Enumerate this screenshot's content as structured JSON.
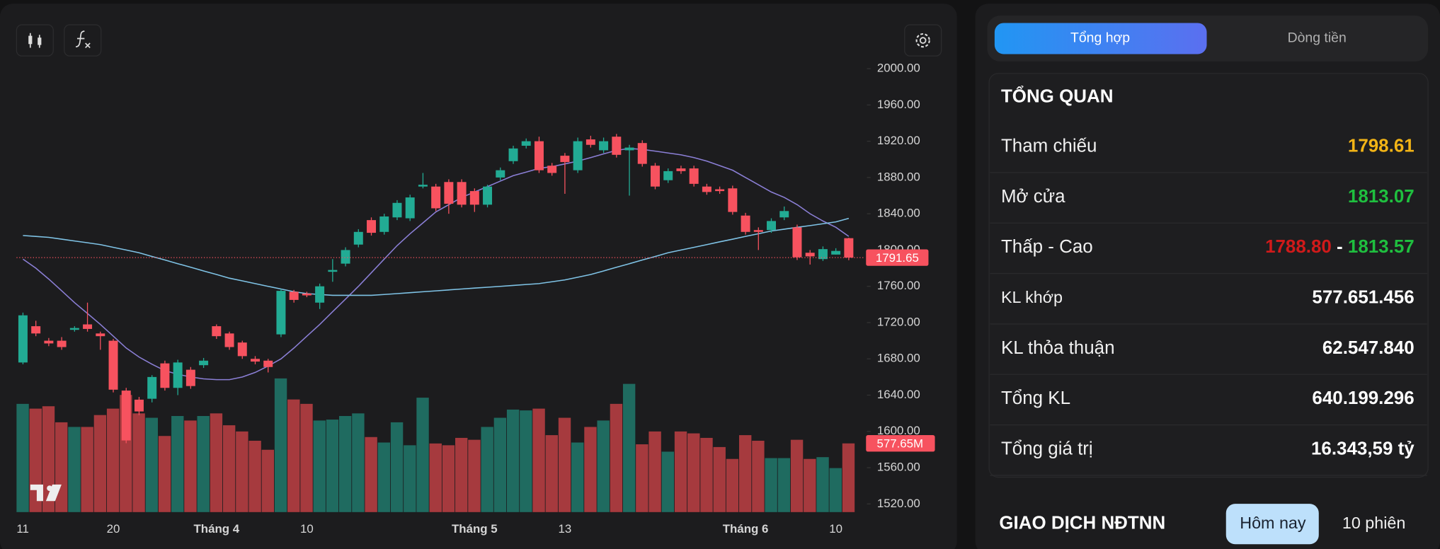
{
  "chart_data": {
    "type": "candlestick",
    "categories": [
      "11",
      null,
      null,
      null,
      null,
      null,
      null,
      "20",
      null,
      null,
      null,
      null,
      null,
      null,
      null,
      "Tháng 4",
      null,
      null,
      null,
      null,
      null,
      null,
      "10",
      null,
      null,
      null,
      null,
      null,
      null,
      null,
      null,
      null,
      null,
      null,
      null,
      "Tháng 5",
      null,
      null,
      null,
      null,
      null,
      null,
      "13",
      null,
      null,
      null,
      null,
      null,
      null,
      null,
      null,
      null,
      null,
      null,
      null,
      null,
      "Tháng 6",
      null,
      null,
      null,
      null,
      null,
      null,
      "10",
      null
    ],
    "open": [
      1676,
      1716,
      1700,
      1700,
      1712,
      1718,
      1708,
      1700,
      1645,
      1635,
      1636,
      1675,
      1648,
      1668,
      1673,
      1716,
      1708,
      1698,
      1680,
      1678,
      1707,
      1754,
      1752,
      1742,
      1776,
      1785,
      1806,
      1833,
      1820,
      1836,
      1835,
      1870,
      1870,
      1875,
      1875,
      1865,
      1850,
      1880,
      1898,
      1915,
      1920,
      1893,
      1904,
      1888,
      1922,
      1910,
      1925,
      1910,
      1918,
      1893,
      1877,
      1890,
      1890,
      1870,
      1867,
      1868,
      1838,
      1822,
      1822,
      1836,
      1825,
      1797,
      1790,
      1795,
      1813.07
    ],
    "high": [
      1731,
      1722,
      1703,
      1704,
      1716,
      1742,
      1710,
      1702,
      1648,
      1638,
      1662,
      1678,
      1679,
      1671,
      1681,
      1718,
      1710,
      1700,
      1683,
      1680,
      1757,
      1756,
      1754,
      1763,
      1790,
      1803,
      1823,
      1836,
      1840,
      1855,
      1861,
      1885,
      1873,
      1878,
      1878,
      1868,
      1872,
      1891,
      1915,
      1923,
      1925,
      1896,
      1907,
      1924,
      1926,
      1924,
      1928,
      1916,
      1921,
      1896,
      1890,
      1893,
      1893,
      1873,
      1870,
      1871,
      1841,
      1825,
      1835,
      1848,
      1828,
      1800,
      1804,
      1802,
      1813.57
    ],
    "low": [
      1674,
      1705,
      1694,
      1690,
      1710,
      1710,
      1690,
      1643,
      1587,
      1618,
      1632,
      1645,
      1640,
      1647,
      1670,
      1702,
      1690,
      1680,
      1674,
      1665,
      1704,
      1742,
      1748,
      1735,
      1765,
      1782,
      1803,
      1816,
      1817,
      1833,
      1832,
      1868,
      1843,
      1840,
      1847,
      1842,
      1847,
      1877,
      1895,
      1912,
      1885,
      1882,
      1862,
      1885,
      1913,
      1907,
      1902,
      1860,
      1892,
      1867,
      1874,
      1884,
      1870,
      1861,
      1862,
      1839,
      1817,
      1800,
      1819,
      1833,
      1789,
      1784,
      1788,
      1795,
      1788.8
    ],
    "close": [
      1728,
      1708,
      1697,
      1693,
      1714,
      1713,
      1705,
      1646,
      1590,
      1622,
      1660,
      1648,
      1676,
      1650,
      1678,
      1705,
      1693,
      1683,
      1677,
      1671,
      1755,
      1745,
      1750,
      1760,
      1778,
      1800,
      1820,
      1819,
      1837,
      1852,
      1858,
      1872,
      1846,
      1851,
      1850,
      1850,
      1870,
      1888,
      1912,
      1920,
      1888,
      1885,
      1897,
      1920,
      1916,
      1920,
      1905,
      1913,
      1895,
      1870,
      1887,
      1887,
      1873,
      1864,
      1865,
      1842,
      1820,
      1820,
      1832,
      1843,
      1792,
      1793,
      1801,
      1799,
      1791.65
    ],
    "volume": [
      910,
      870,
      890,
      755,
      716,
      716,
      816,
      870,
      985,
      830,
      793,
      640,
      808,
      770,
      808,
      830,
      730,
      678,
      600,
      524,
      1124,
      947,
      910,
      770,
      778,
      808,
      830,
      631,
      585,
      755,
      562,
      962,
      577,
      562,
      624,
      608,
      716,
      793,
      862,
      855,
      870,
      647,
      793,
      585,
      716,
      770,
      910,
      1078,
      570,
      678,
      508,
      678,
      662,
      624,
      547,
      447,
      647,
      600,
      454,
      454,
      608,
      447,
      462,
      370,
      577.65
    ],
    "series": [
      {
        "color": "#8b7fd6",
        "values": [
          1790,
          1780,
          1768,
          1755,
          1742,
          1730,
          1718,
          1705,
          1692,
          1682,
          1674,
          1667,
          1663,
          1660,
          1658,
          1657,
          1657,
          1660,
          1665,
          1672,
          1680,
          1692,
          1705,
          1718,
          1732,
          1746,
          1760,
          1775,
          1790,
          1805,
          1818,
          1830,
          1842,
          1850,
          1858,
          1864,
          1870,
          1876,
          1882,
          1886,
          1890,
          1892,
          1895,
          1898,
          1902,
          1906,
          1910,
          1912,
          1911,
          1909,
          1907,
          1905,
          1902,
          1898,
          1893,
          1888,
          1880,
          1872,
          1864,
          1858,
          1850,
          1840,
          1832,
          1825,
          1815
        ]
      },
      {
        "color": "#7fc3e6",
        "values": [
          1816,
          1815,
          1814,
          1812,
          1810,
          1808,
          1806,
          1803,
          1800,
          1797,
          1793,
          1789,
          1785,
          1781,
          1777,
          1773,
          1769,
          1766,
          1763,
          1760,
          1757,
          1754,
          1752,
          1751,
          1750,
          1750,
          1750,
          1750,
          1751,
          1752,
          1753,
          1754,
          1755,
          1756,
          1757,
          1758,
          1759,
          1760,
          1761,
          1762,
          1763,
          1765,
          1767,
          1770,
          1773,
          1777,
          1781,
          1785,
          1789,
          1793,
          1797,
          1800,
          1803,
          1806,
          1809,
          1812,
          1815,
          1818,
          1821,
          1823,
          1825,
          1827,
          1829,
          1831,
          1835
        ]
      }
    ],
    "up_color": "#22ab94",
    "down_color": "#f7525f",
    "volume_up_color": "#1f6b60",
    "volume_down_color": "#a63a3e",
    "ylim": [
      1511,
      2015
    ],
    "yticks": [
      {
        "value": 2000,
        "label": "2000.00"
      },
      {
        "value": 1960,
        "label": "1960.00"
      },
      {
        "value": 1920,
        "label": "1920.00"
      },
      {
        "value": 1880,
        "label": "1880.00"
      },
      {
        "value": 1840,
        "label": "1840.00"
      },
      {
        "value": 1800,
        "label": "1800.00"
      },
      {
        "value": 1760,
        "label": "1760.00"
      },
      {
        "value": 1720,
        "label": "1720.00"
      },
      {
        "value": 1680,
        "label": "1680.00"
      },
      {
        "value": 1640,
        "label": "1640.00"
      },
      {
        "value": 1600,
        "label": "1600.00"
      },
      {
        "value": 1560,
        "label": "1560.00"
      },
      {
        "value": 1520,
        "label": "1520.00"
      }
    ],
    "volume_lim": [
      0,
      1250
    ],
    "last_close_label": "1791.65",
    "last_volume_label": "577.65M"
  },
  "panel": {
    "tabs": [
      "Tổng hợp",
      "Dòng tiền"
    ],
    "overview": {
      "title": "TỔNG QUAN",
      "rows": [
        {
          "label": "Tham chiếu",
          "value": "1798.61",
          "color": "#f2b416"
        },
        {
          "label": "Mở cửa",
          "value": "1813.07",
          "color": "#1fbf3f"
        },
        {
          "label": "Thấp - Cao",
          "low": "1788.80",
          "separator": "-",
          "high": "1813.57",
          "low_color": "#d01a1a",
          "high_color": "#1fbf3f"
        },
        {
          "label": "KL khớp",
          "value": "577.651.456",
          "color": "#ffffff"
        },
        {
          "label": "KL thỏa thuận",
          "value": "62.547.840",
          "color": "#ffffff"
        },
        {
          "label": "Tổng KL",
          "value": "640.199.296",
          "color": "#ffffff"
        },
        {
          "label": "Tổng giá trị",
          "value": "16.343,59 tỷ",
          "color": "#ffffff"
        }
      ]
    },
    "foreign": {
      "title": "GIAO DỊCH NĐTNN",
      "buttons": [
        "Hôm nay",
        "10 phiên"
      ]
    }
  }
}
